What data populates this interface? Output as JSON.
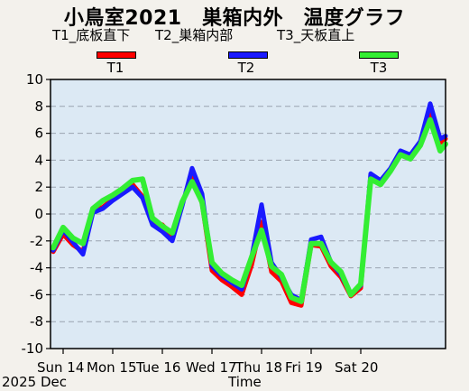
{
  "chart_data": {
    "type": "line",
    "title": "小鳥室2021　巣箱内外　温度グラフ",
    "xlabel": "Time",
    "ylabel": "",
    "ylim": [
      -10,
      10
    ],
    "yticks": [
      10,
      8,
      6,
      4,
      2,
      0,
      -2,
      -4,
      -6,
      -8,
      -10
    ],
    "xlim": [
      0,
      7.8
    ],
    "date_label": "2025 Dec",
    "x_units": "days since Sun 14 00:00",
    "xticks": [
      {
        "x": 0,
        "label": "Sun 14"
      },
      {
        "x": 1,
        "label": "Mon 15"
      },
      {
        "x": 2,
        "label": "Tue 16"
      },
      {
        "x": 3,
        "label": "Wed 17"
      },
      {
        "x": 4,
        "label": "Thu 18"
      },
      {
        "x": 5,
        "label": "Fri 19"
      },
      {
        "x": 6,
        "label": "Sat 20"
      }
    ],
    "x": [
      -0.2,
      0.0,
      0.2,
      0.4,
      0.6,
      0.8,
      1.0,
      1.2,
      1.4,
      1.6,
      1.8,
      2.0,
      2.2,
      2.4,
      2.6,
      2.8,
      3.0,
      3.2,
      3.4,
      3.6,
      3.8,
      4.0,
      4.2,
      4.4,
      4.6,
      4.8,
      5.0,
      5.2,
      5.4,
      5.6,
      5.8,
      6.0,
      6.2,
      6.4,
      6.6,
      6.8,
      7.0,
      7.2,
      7.4,
      7.6,
      7.8
    ],
    "series": [
      {
        "name": "T1_底板直下",
        "short": "T1",
        "color": "#ff0000",
        "values": [
          -2.8,
          -1.5,
          -2.3,
          -2.8,
          0.3,
          0.5,
          1.1,
          1.6,
          2.2,
          1.3,
          -0.6,
          -0.8,
          -1.6,
          0.8,
          2.7,
          0.8,
          -4.2,
          -4.9,
          -5.4,
          -6.0,
          -3.8,
          -0.6,
          -4.3,
          -5.0,
          -6.6,
          -6.8,
          -2.3,
          -2.4,
          -3.9,
          -4.7,
          -6.1,
          -5.5,
          2.8,
          2.2,
          3.3,
          4.6,
          4.2,
          5.3,
          7.5,
          5.3,
          5.6
        ]
      },
      {
        "name": "T2_巣箱内部",
        "short": "T2",
        "color": "#1a1aff",
        "values": [
          -2.7,
          -1.2,
          -2.1,
          -3.0,
          0.1,
          0.4,
          1.0,
          1.5,
          2.0,
          1.2,
          -0.8,
          -1.3,
          -2.0,
          0.6,
          3.4,
          1.5,
          -3.9,
          -4.6,
          -5.1,
          -5.6,
          -3.2,
          0.7,
          -3.6,
          -4.7,
          -6.0,
          -6.4,
          -1.9,
          -1.7,
          -3.6,
          -4.5,
          -6.0,
          -5.3,
          3.0,
          2.5,
          3.4,
          4.7,
          4.4,
          5.4,
          8.2,
          5.6,
          5.8
        ]
      },
      {
        "name": "T3_天板直上",
        "short": "T3",
        "color": "#33ee33",
        "values": [
          -2.5,
          -1.0,
          -1.8,
          -2.2,
          0.4,
          1.0,
          1.4,
          1.9,
          2.5,
          2.6,
          -0.3,
          -0.9,
          -1.4,
          0.9,
          2.4,
          0.9,
          -3.6,
          -4.4,
          -4.9,
          -5.3,
          -3.2,
          -1.2,
          -3.9,
          -4.5,
          -6.2,
          -6.5,
          -2.2,
          -2.2,
          -3.6,
          -4.3,
          -6.0,
          -5.2,
          2.6,
          2.2,
          3.2,
          4.4,
          4.1,
          5.1,
          7.0,
          4.7,
          5.2
        ]
      }
    ]
  }
}
